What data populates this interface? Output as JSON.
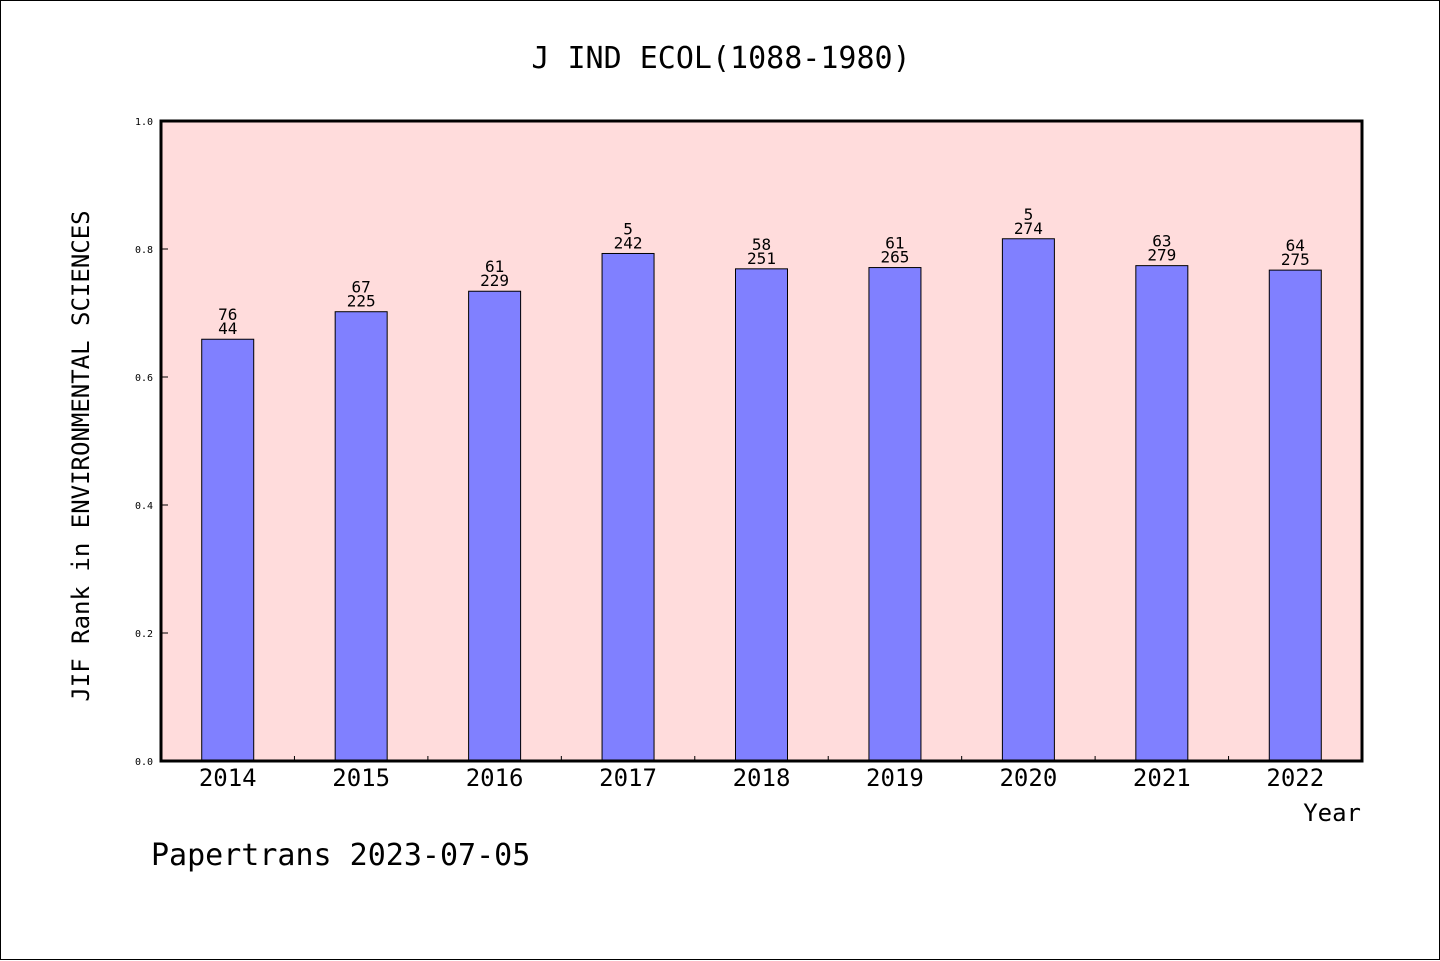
{
  "chart_data": {
    "type": "bar",
    "title": "J IND ECOL(1088-1980)",
    "xlabel": "Year",
    "ylabel": "JIF Rank in ENVIRONMENTAL SCIENCES",
    "categories": [
      "2014",
      "2015",
      "2016",
      "2017",
      "2018",
      "2019",
      "2020",
      "2021",
      "2022"
    ],
    "values": [
      0.659,
      0.702,
      0.734,
      0.793,
      0.769,
      0.771,
      0.816,
      0.774,
      0.767
    ],
    "labels_top": [
      "76",
      "67",
      "61",
      "5",
      "58",
      "61",
      "5",
      "63",
      "64"
    ],
    "labels_bottom": [
      "44",
      "225",
      "229",
      "242",
      "251",
      "265",
      "274",
      "279",
      "275"
    ],
    "ylim": [
      0,
      1.0
    ],
    "yticks": [
      "0.0",
      "0.2",
      "0.4",
      "0.6",
      "0.8",
      "1.0"
    ],
    "grid": false,
    "colors": {
      "plot_background": "#ffdcdc",
      "bar_fill": "#8080ff",
      "bar_stroke": "#000000"
    }
  },
  "footer": {
    "text": "Papertrans 2023-07-05"
  }
}
